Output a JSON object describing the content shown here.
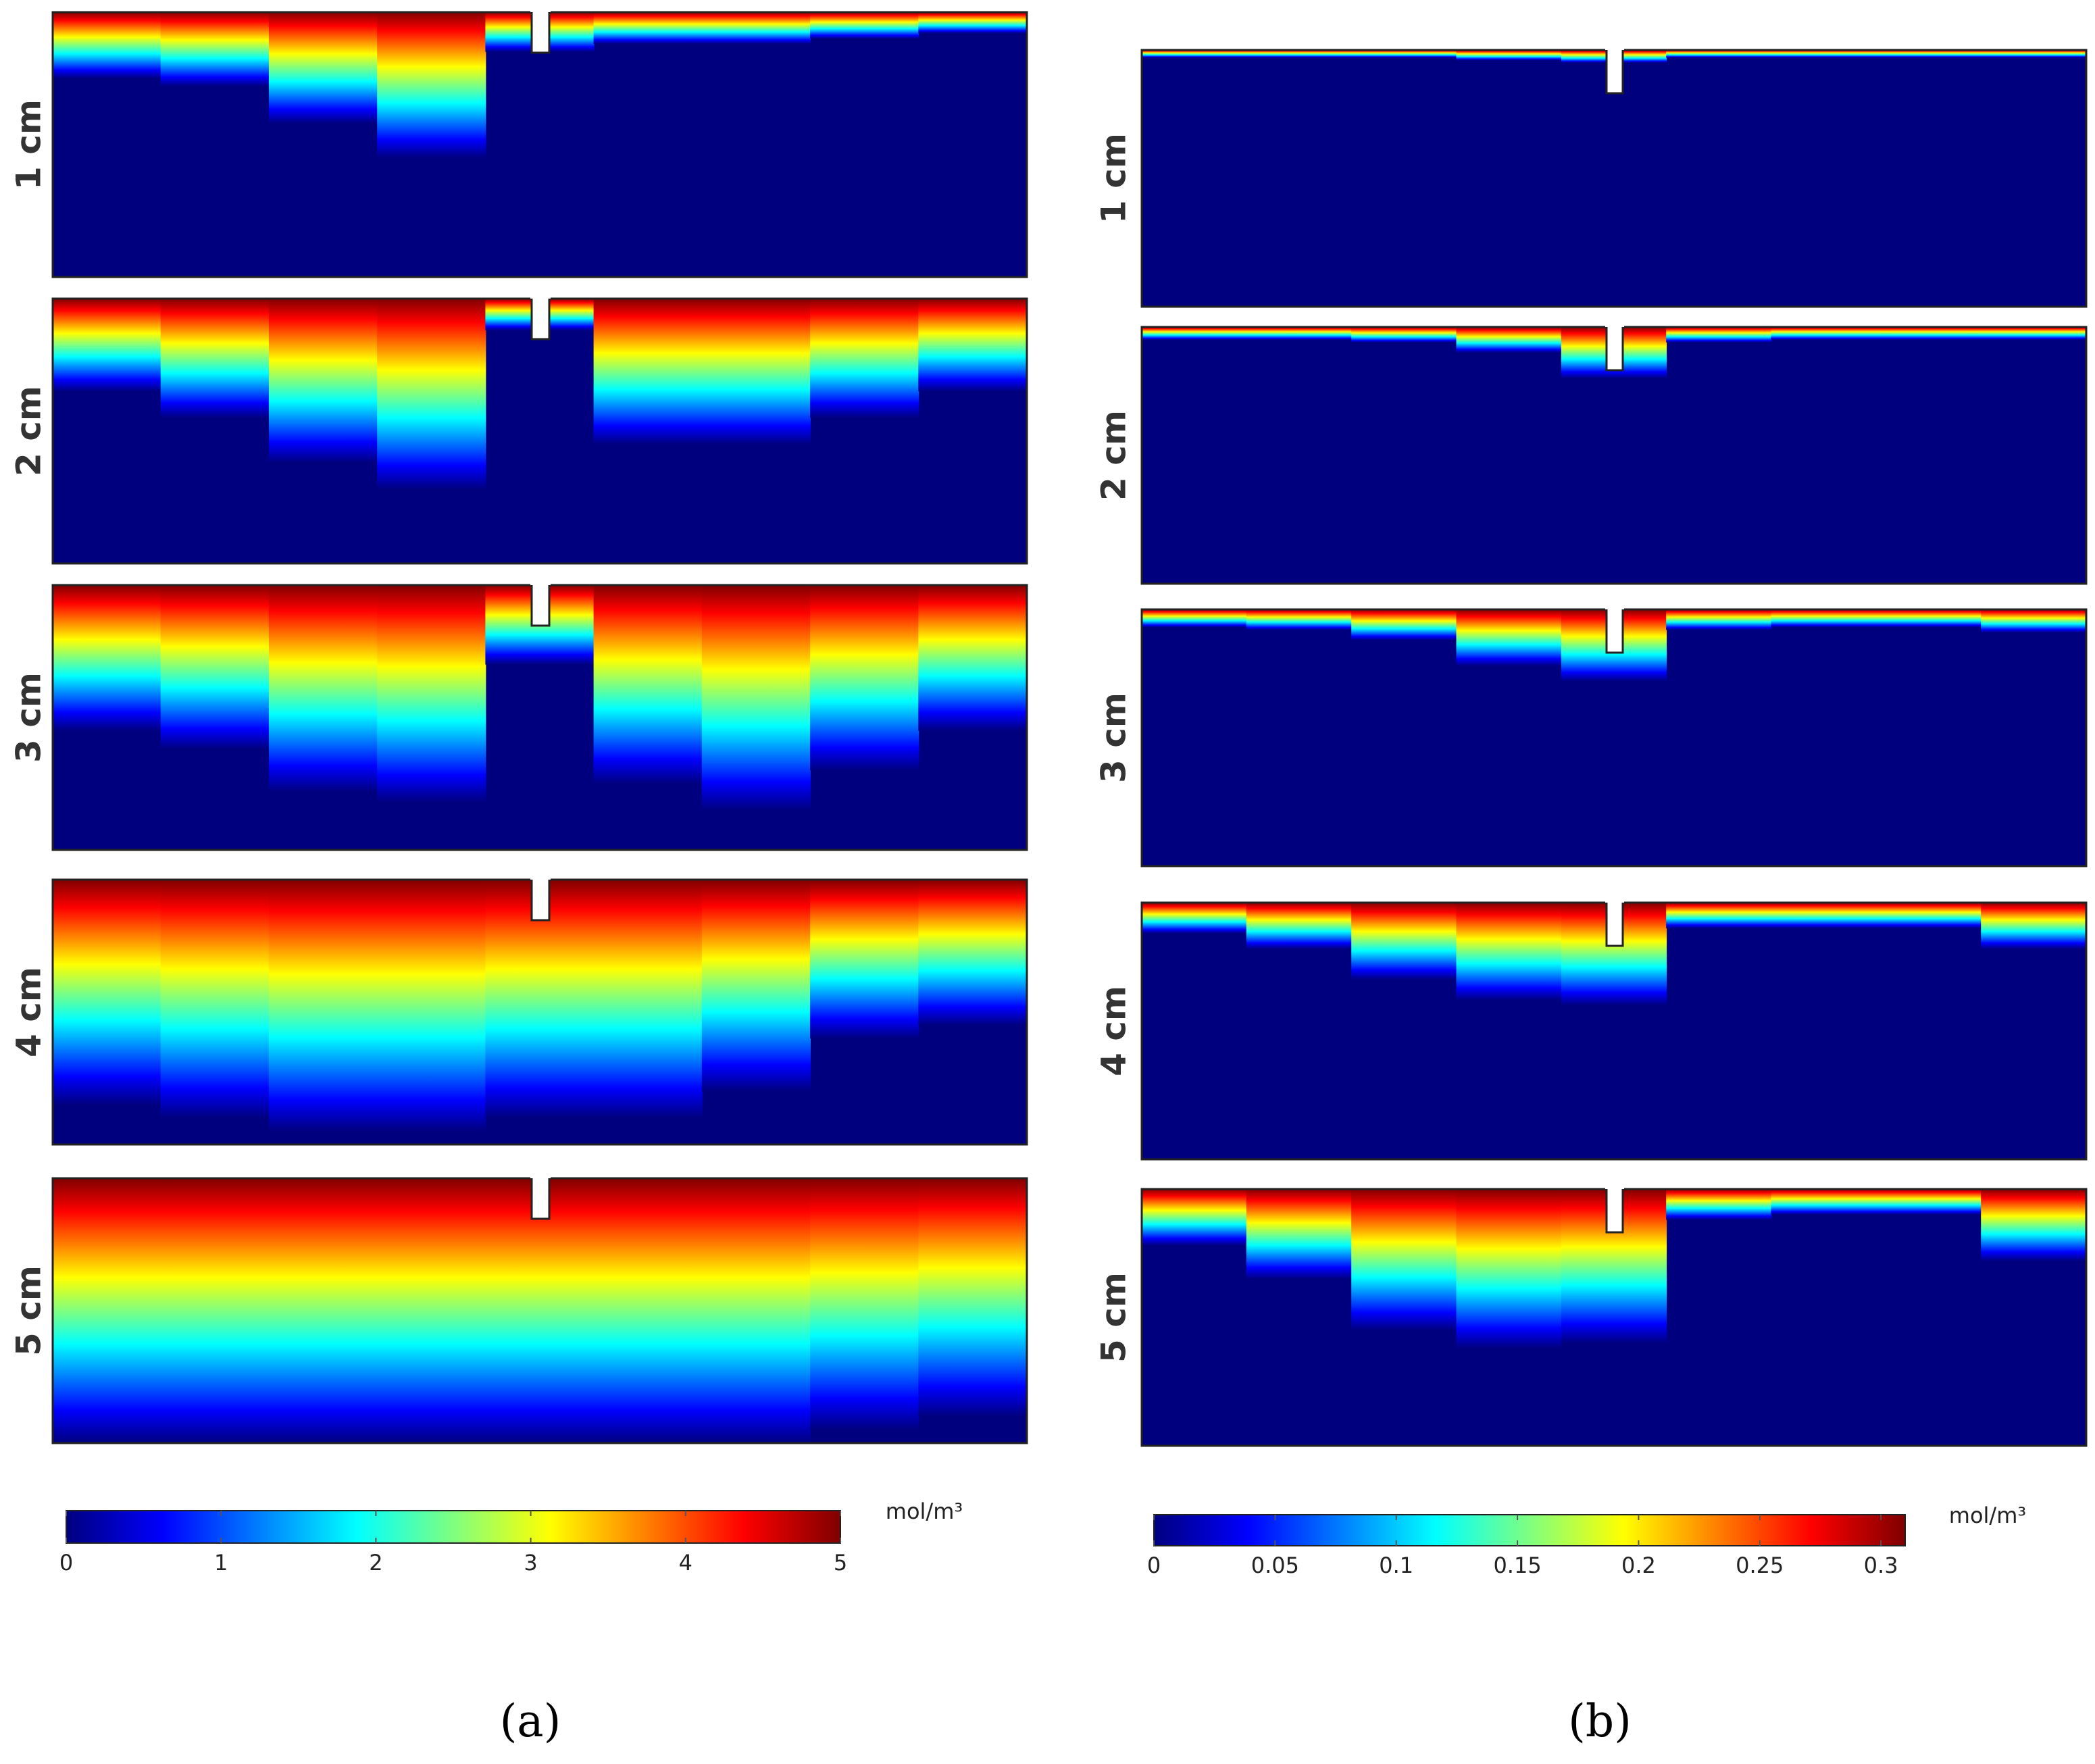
{
  "figure": {
    "panel_labels": [
      "(a)",
      "(b)"
    ],
    "colors": {
      "jet": [
        "#00007f",
        "#0000ff",
        "#007fff",
        "#00ffff",
        "#7fff7f",
        "#ffff00",
        "#ff7f00",
        "#ff0000",
        "#7f0000"
      ],
      "frame": "#222222",
      "text": "#222222"
    }
  },
  "chart_data": [
    {
      "type": "heatmap",
      "panel": "(a)",
      "row_labels": [
        "1 cm",
        "2 cm",
        "3 cm",
        "4 cm",
        "5 cm"
      ],
      "colorbar": {
        "unit": "mol/m³",
        "min": 0,
        "max": 5,
        "ticks": [
          0,
          1,
          2,
          3,
          4,
          5
        ],
        "tick_labels": [
          "0",
          "1",
          "2",
          "3",
          "4",
          "5"
        ]
      },
      "front_depth": [
        [
          0.25,
          0.28,
          0.42,
          0.55,
          0.15,
          0.12,
          0.12,
          0.1,
          0.08
        ],
        [
          0.35,
          0.45,
          0.62,
          0.72,
          0.12,
          0.55,
          0.55,
          0.45,
          0.35
        ],
        [
          0.55,
          0.62,
          0.78,
          0.82,
          0.3,
          0.75,
          0.85,
          0.7,
          0.55
        ],
        [
          0.85,
          0.9,
          0.95,
          0.95,
          0.9,
          0.9,
          0.8,
          0.6,
          0.55
        ],
        [
          1.0,
          1.0,
          1.0,
          1.0,
          1.0,
          1.0,
          1.0,
          0.95,
          0.9
        ]
      ]
    },
    {
      "type": "heatmap",
      "panel": "(b)",
      "row_labels": [
        "1 cm",
        "2 cm",
        "3 cm",
        "4 cm",
        "5 cm"
      ],
      "colorbar": {
        "unit": "mol/m³",
        "min": 0,
        "max": 0.31,
        "ticks": [
          0,
          0.05,
          0.1,
          0.15,
          0.2,
          0.25,
          0.3
        ],
        "tick_labels": [
          "0",
          "0.05",
          "0.1",
          "0.15",
          "0.2",
          "0.25",
          "0.3"
        ]
      },
      "front_depth": [
        [
          0.03,
          0.03,
          0.03,
          0.04,
          0.05,
          0.03,
          0.03,
          0.03,
          0.03
        ],
        [
          0.05,
          0.05,
          0.06,
          0.1,
          0.2,
          0.06,
          0.05,
          0.05,
          0.05
        ],
        [
          0.07,
          0.08,
          0.12,
          0.22,
          0.28,
          0.08,
          0.07,
          0.07,
          0.09
        ],
        [
          0.12,
          0.18,
          0.3,
          0.38,
          0.4,
          0.1,
          0.1,
          0.1,
          0.18
        ],
        [
          0.22,
          0.35,
          0.55,
          0.62,
          0.6,
          0.12,
          0.1,
          0.1,
          0.28
        ]
      ]
    }
  ]
}
